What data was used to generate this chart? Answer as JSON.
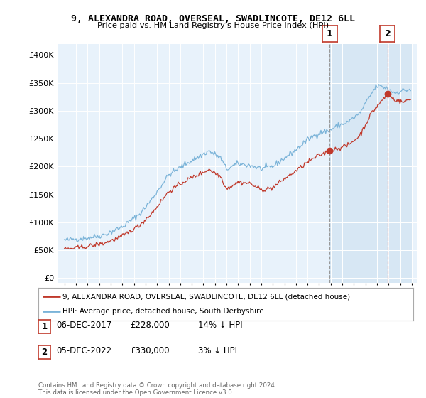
{
  "title1": "9, ALEXANDRA ROAD, OVERSEAL, SWADLINCOTE, DE12 6LL",
  "title2": "Price paid vs. HM Land Registry's House Price Index (HPI)",
  "ylabel_ticks": [
    "£0",
    "£50K",
    "£100K",
    "£150K",
    "£200K",
    "£250K",
    "£300K",
    "£350K",
    "£400K"
  ],
  "ytick_vals": [
    0,
    50000,
    100000,
    150000,
    200000,
    250000,
    300000,
    350000,
    400000
  ],
  "ylim": [
    -8000,
    420000
  ],
  "legend_line1": "9, ALEXANDRA ROAD, OVERSEAL, SWADLINCOTE, DE12 6LL (detached house)",
  "legend_line2": "HPI: Average price, detached house, South Derbyshire",
  "annotation1_label": "1",
  "annotation1_date": "06-DEC-2017",
  "annotation1_price": "£228,000",
  "annotation1_hpi": "14% ↓ HPI",
  "annotation2_label": "2",
  "annotation2_date": "05-DEC-2022",
  "annotation2_price": "£330,000",
  "annotation2_hpi": "3% ↓ HPI",
  "footnote": "Contains HM Land Registry data © Crown copyright and database right 2024.\nThis data is licensed under the Open Government Licence v3.0.",
  "hpi_color": "#7ab3d8",
  "price_color": "#c0392b",
  "vline1_color": "#999999",
  "vline2_color": "#e8a0a0",
  "marker1_year": 2017.92,
  "marker2_year": 2022.92,
  "background_color": "#ddeaf5",
  "shade_color": "#cce0f0",
  "chart_bg": "#e8f2fb",
  "anno_box_color": "#c0392b"
}
